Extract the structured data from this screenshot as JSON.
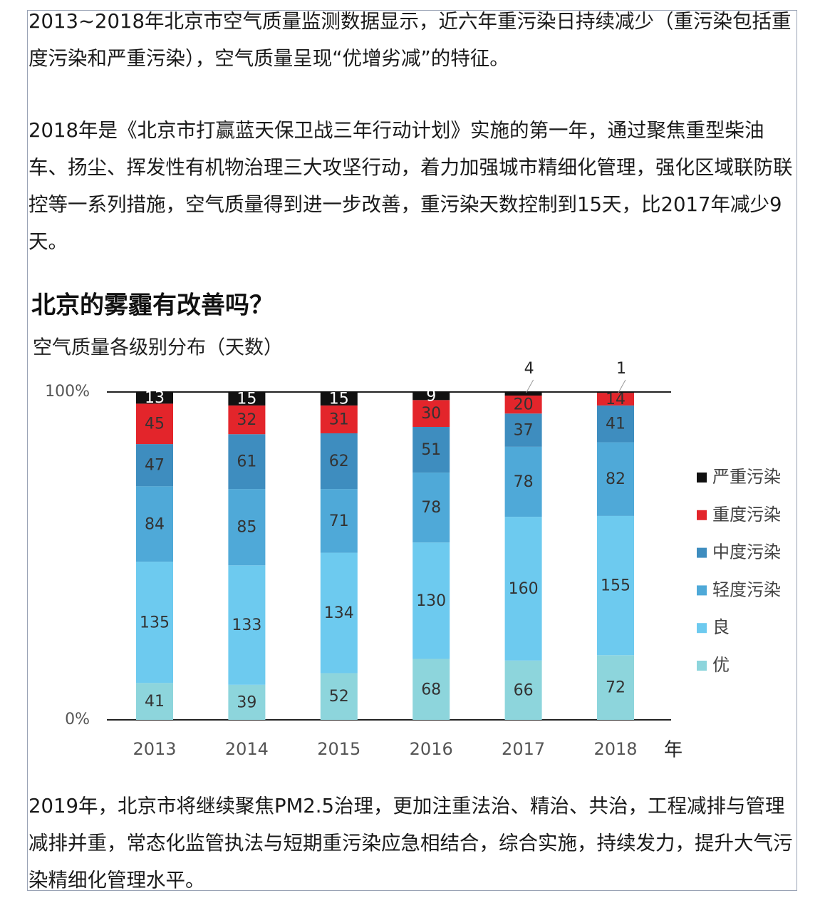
{
  "paragraphs": [
    "2013~2018年北京市空气质量监测数据显示，近六年重污染日持续减少（重污染包括重度污染和严重污染），空气质量呈现“优增劣减”的特征。",
    "2018年是《北京市打赢蓝天保卫战三年行动计划》实施的第一年，通过聚焦重型柴油车、扬尘、挥发性有机物治理三大攻坚行动，着力加强城市精细化管理，强化区域联防联控等一系列措施，空气质量得到进一步改善，重污染天数控制到15天，比2017年减少9天。",
    "2019年，北京市将继续聚焦PM2.5治理，更加注重法治、精治、共治，工程减排与管理减排并重，常态化监管执法与短期重污染应急相结合，综合实施，持续发力，提升大气污染精细化管理水平。"
  ],
  "chart_data": {
    "type": "bar",
    "stacking": "percent",
    "title": "北京的雾霾有改善吗？",
    "subtitle": "空气质量各级别分布（天数）",
    "x_label": "年",
    "categories": [
      "2013",
      "2014",
      "2015",
      "2016",
      "2017",
      "2018"
    ],
    "series": [
      {
        "name": "优",
        "color": "#8dd5dc",
        "values": [
          41,
          39,
          52,
          68,
          66,
          72
        ]
      },
      {
        "name": "良",
        "color": "#6dcaef",
        "values": [
          135,
          133,
          134,
          130,
          160,
          155
        ]
      },
      {
        "name": "轻度污染",
        "color": "#4fa9d8",
        "values": [
          84,
          85,
          71,
          78,
          78,
          82
        ]
      },
      {
        "name": "中度污染",
        "color": "#3e8dbf",
        "values": [
          47,
          61,
          62,
          51,
          37,
          41
        ]
      },
      {
        "name": "重度污染",
        "color": "#e3252b",
        "values": [
          45,
          32,
          31,
          30,
          20,
          14
        ]
      },
      {
        "name": "严重污染",
        "color": "#111111",
        "values": [
          13,
          15,
          15,
          9,
          4,
          1
        ]
      }
    ],
    "ylim": [
      0,
      100
    ],
    "yticks": [
      {
        "value": 0,
        "label": "0%"
      },
      {
        "value": 100,
        "label": "100%"
      }
    ],
    "legend": "right"
  }
}
